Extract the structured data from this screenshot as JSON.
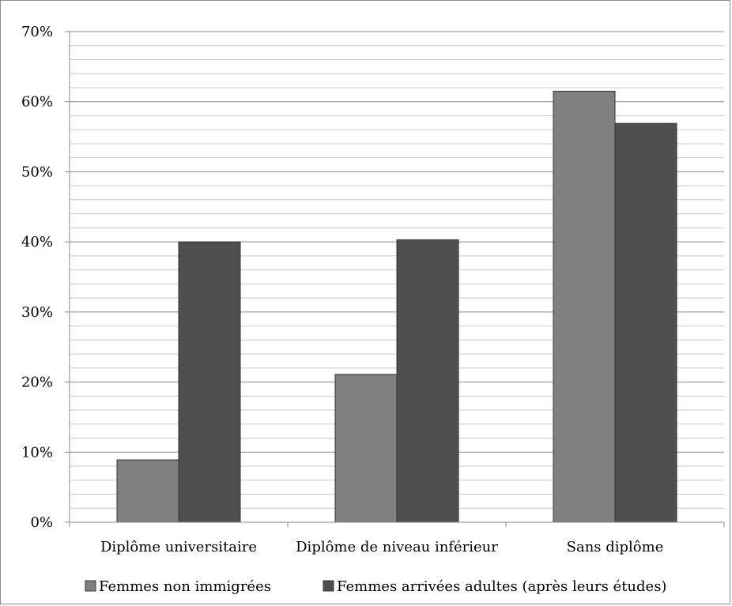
{
  "chart_data": {
    "type": "bar",
    "categories": [
      "Diplôme universitaire",
      "Diplôme de niveau inférieur",
      "Sans diplôme"
    ],
    "series": [
      {
        "name": "Femmes non immigrées",
        "values": [
          8.9,
          21.1,
          61.5
        ],
        "color": "#808080"
      },
      {
        "name": "Femmes arrivées adultes (après leurs études)",
        "values": [
          40.0,
          40.3,
          56.9
        ],
        "color": "#4f4f4f"
      }
    ],
    "yticks": [
      "0%",
      "10%",
      "20%",
      "30%",
      "40%",
      "50%",
      "60%",
      "70%"
    ],
    "ylim": [
      0,
      70
    ],
    "grid": true,
    "legend": "bottom"
  }
}
